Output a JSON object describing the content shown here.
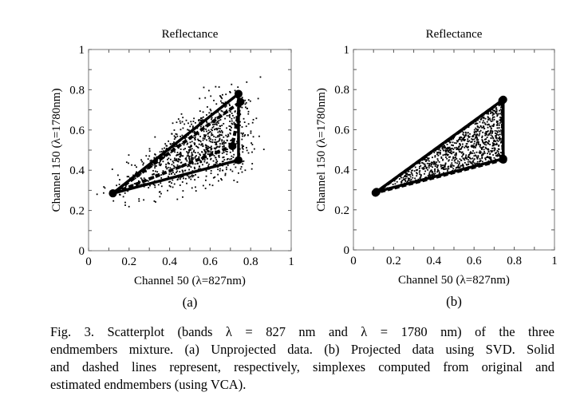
{
  "figure": {
    "caption_lines": [
      "Fig. 3.   Scatterplot (bands λ = 827 nm and λ = 1780 nm) of the three",
      "endmembers mixture. (a) Unprojected data. (b) Projected data using SVD. Solid",
      "and dashed lines represent, respectively, simplexes computed from original and",
      "estimated endmembers (using VCA)."
    ]
  },
  "chart_data": [
    {
      "type": "scatter",
      "panel_label": "(a)",
      "title": "Reflectance",
      "xlabel": "Channel 50 (λ=827nm)",
      "ylabel": "Channel 150 (λ=1780nm)",
      "xlim": [
        0,
        1
      ],
      "ylim": [
        0,
        1
      ],
      "xticks": [
        "0",
        "0.2",
        "0.4",
        "0.6",
        "0.8",
        "1"
      ],
      "yticks": [
        "0",
        "0.2",
        "0.4",
        "0.6",
        "0.8",
        "1"
      ],
      "grid": false,
      "points_description": "noisy cloud of ~1000 mixed pixels spread around the simplex",
      "noise_level": 0.06,
      "simplex_original": {
        "style": "solid",
        "vertices": [
          [
            0.12,
            0.285
          ],
          [
            0.74,
            0.78
          ],
          [
            0.74,
            0.45
          ]
        ]
      },
      "simplex_estimated": {
        "style": "dashed",
        "vertices": [
          [
            0.12,
            0.285
          ],
          [
            0.75,
            0.74
          ],
          [
            0.71,
            0.52
          ]
        ]
      }
    },
    {
      "type": "scatter",
      "panel_label": "(b)",
      "title": "Reflectance",
      "xlabel": "Channel 50 (λ=827nm)",
      "ylabel": "Channel 150 (λ=1780nm)",
      "xlim": [
        0,
        1
      ],
      "ylim": [
        0,
        1
      ],
      "xticks": [
        "0",
        "0.2",
        "0.4",
        "0.6",
        "0.8",
        "1"
      ],
      "yticks": [
        "0",
        "0.2",
        "0.4",
        "0.6",
        "0.8",
        "1"
      ],
      "grid": false,
      "points_description": "~1000 projected pixels lying inside the simplex",
      "noise_level": 0.0,
      "simplex_original": {
        "style": "solid",
        "vertices": [
          [
            0.115,
            0.29
          ],
          [
            0.745,
            0.75
          ],
          [
            0.745,
            0.455
          ]
        ]
      },
      "simplex_estimated": {
        "style": "dashed",
        "vertices": [
          [
            0.11,
            0.285
          ],
          [
            0.74,
            0.745
          ],
          [
            0.745,
            0.45
          ]
        ]
      }
    }
  ]
}
